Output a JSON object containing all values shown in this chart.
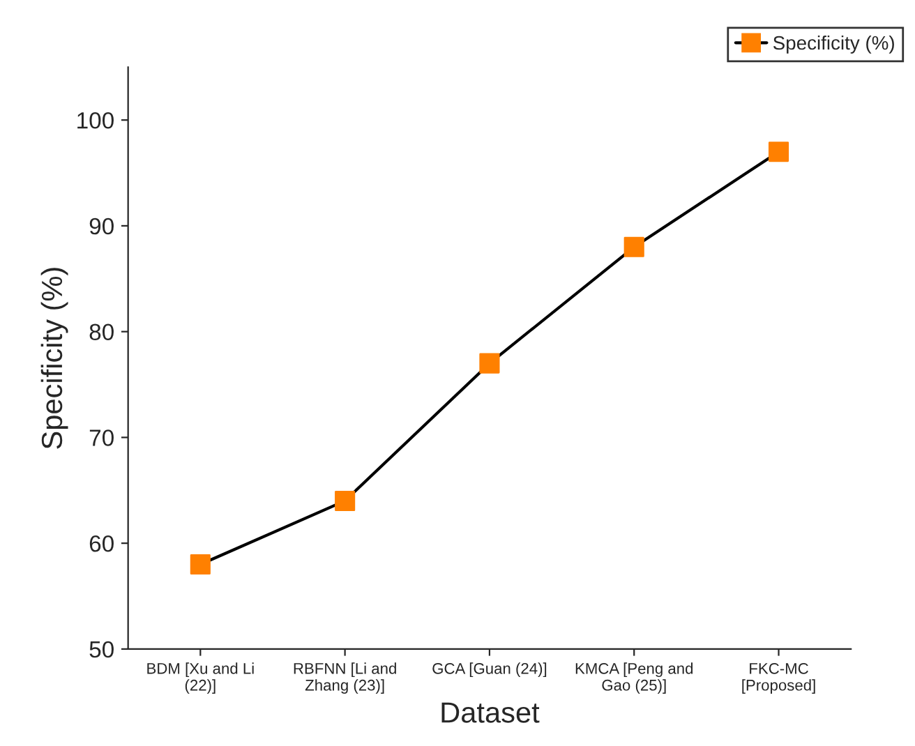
{
  "chart_data": {
    "type": "line",
    "xlabel": "Dataset",
    "ylabel": "Specificity (%)",
    "categories": [
      "BDM [Xu and Li\n(22)]",
      "RBFNN [Li and\nZhang (23)]",
      "GCA [Guan (24)]",
      "KMCA [Peng and\nGao (25)]",
      "FKC-MC\n[Proposed]"
    ],
    "series": [
      {
        "name": "Specificity (%)",
        "color": "#ff8000",
        "values": [
          58,
          64,
          77,
          88,
          97
        ]
      }
    ],
    "ylim": [
      50,
      105
    ],
    "yticks": [
      50,
      60,
      70,
      80,
      90,
      100
    ],
    "marker": "square",
    "line_style": "solid",
    "legend": "top right",
    "grid": false
  }
}
